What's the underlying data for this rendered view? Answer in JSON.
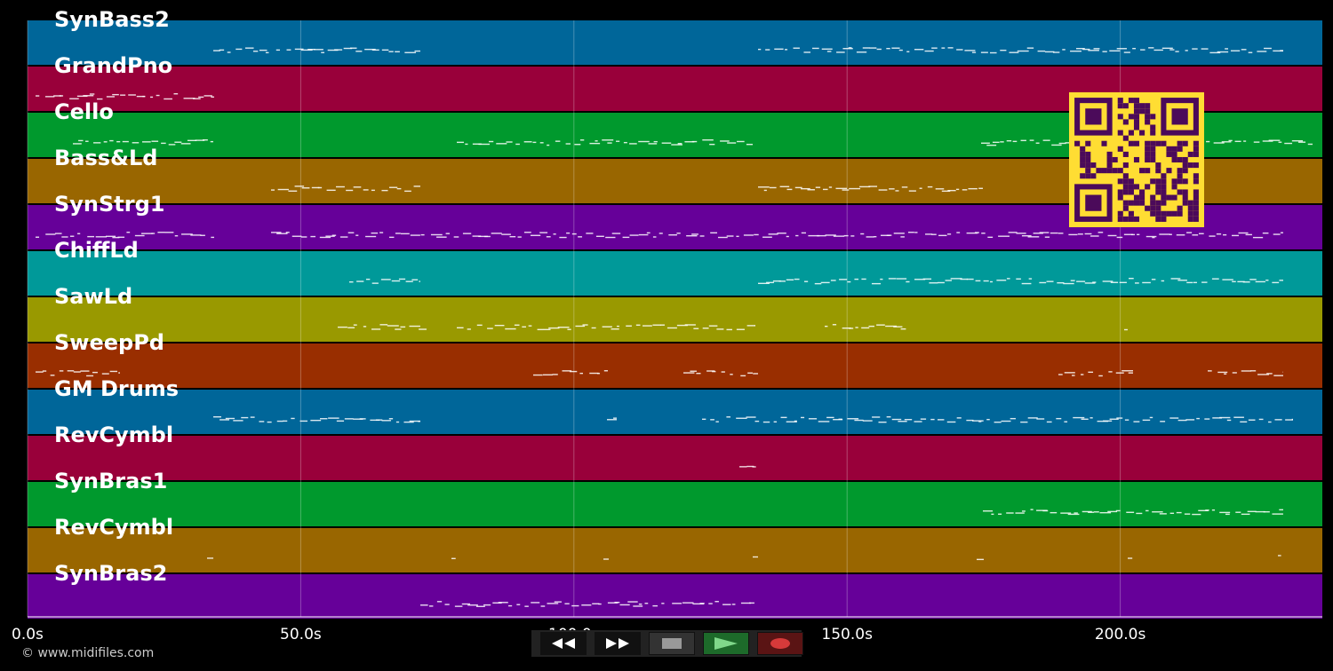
{
  "tracks": [
    {
      "name": "SynBass2",
      "color": "#006699"
    },
    {
      "name": "GrandPno",
      "color": "#99003a"
    },
    {
      "name": "Cello",
      "color": "#00992d"
    },
    {
      "name": "Bass&Ld",
      "color": "#996600"
    },
    {
      "name": "SynStrg1",
      "color": "#660099"
    },
    {
      "name": "ChiffLd",
      "color": "#009999"
    },
    {
      "name": "SawLd",
      "color": "#999900"
    },
    {
      "name": "SweepPd",
      "color": "#992e00"
    },
    {
      "name": "GM Drums",
      "color": "#006699"
    },
    {
      "name": "RevCymbl",
      "color": "#99003a"
    },
    {
      "name": "SynBras1",
      "color": "#00992d"
    },
    {
      "name": "RevCymbl",
      "color": "#996600"
    },
    {
      "name": "SynBras2",
      "color": "#660099"
    }
  ],
  "timeline": {
    "ticks": [
      {
        "label": "0.0s",
        "seconds": 0
      },
      {
        "label": "50.0s",
        "seconds": 50
      },
      {
        "label": "100.0s",
        "seconds": 100
      },
      {
        "label": "150.0s",
        "seconds": 150
      },
      {
        "label": "200.0s",
        "seconds": 200
      }
    ],
    "max_seconds": 237
  },
  "copyright": "© www.midifiles.com",
  "qr_color": "#ffdd33",
  "qr_dark": "#4b0a5a",
  "transport": {
    "rewind_icon": "rewind-icon",
    "forward_icon": "fast-forward-icon",
    "stop_icon": "stop-icon",
    "play_icon": "play-icon",
    "record_icon": "record-icon"
  }
}
